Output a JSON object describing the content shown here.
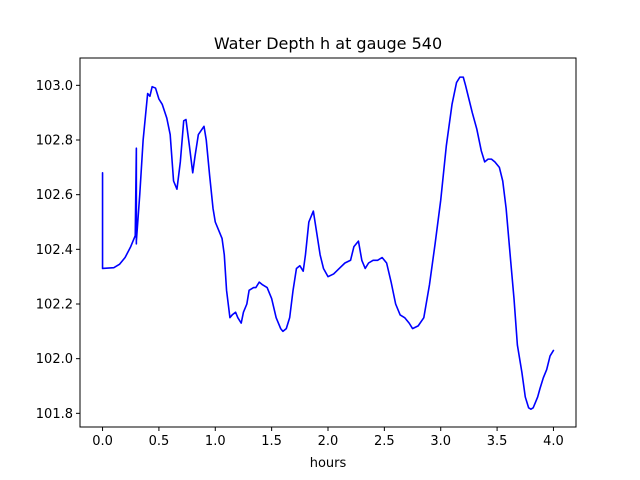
{
  "chart_data": {
    "type": "line",
    "title": "Water Depth h at gauge 540",
    "xlabel": "hours",
    "ylabel": "",
    "xlim": [
      -0.2,
      4.2
    ],
    "ylim": [
      101.75,
      103.1
    ],
    "x_ticks": [
      0.0,
      0.5,
      1.0,
      1.5,
      2.0,
      2.5,
      3.0,
      3.5,
      4.0
    ],
    "x_tick_labels": [
      "0.0",
      "0.5",
      "1.0",
      "1.5",
      "2.0",
      "2.5",
      "3.0",
      "3.5",
      "4.0"
    ],
    "y_ticks": [
      101.8,
      102.0,
      102.2,
      102.4,
      102.6,
      102.8,
      103.0
    ],
    "y_tick_labels": [
      "101.8",
      "102.0",
      "102.2",
      "102.4",
      "102.6",
      "102.8",
      "103.0"
    ],
    "grid": false,
    "legend": null,
    "series": [
      {
        "color": "#0000ff",
        "x": [
          0.0,
          0.0,
          0.0,
          0.1,
          0.15,
          0.2,
          0.25,
          0.29,
          0.3,
          0.3,
          0.3,
          0.33,
          0.36,
          0.4,
          0.42,
          0.44,
          0.47,
          0.5,
          0.53,
          0.57,
          0.6,
          0.63,
          0.66,
          0.69,
          0.72,
          0.74,
          0.77,
          0.8,
          0.82,
          0.85,
          0.9,
          0.92,
          0.95,
          0.98,
          1.0,
          1.03,
          1.06,
          1.08,
          1.1,
          1.13,
          1.15,
          1.18,
          1.2,
          1.23,
          1.25,
          1.28,
          1.3,
          1.34,
          1.36,
          1.39,
          1.42,
          1.46,
          1.5,
          1.54,
          1.58,
          1.6,
          1.63,
          1.66,
          1.69,
          1.72,
          1.75,
          1.78,
          1.8,
          1.83,
          1.87,
          1.9,
          1.93,
          1.96,
          2.0,
          2.05,
          2.1,
          2.15,
          2.2,
          2.23,
          2.27,
          2.3,
          2.33,
          2.36,
          2.4,
          2.44,
          2.48,
          2.52,
          2.56,
          2.6,
          2.64,
          2.68,
          2.72,
          2.75,
          2.8,
          2.85,
          2.9,
          2.95,
          3.0,
          3.05,
          3.1,
          3.14,
          3.17,
          3.2,
          3.22,
          3.25,
          3.28,
          3.32,
          3.36,
          3.39,
          3.42,
          3.45,
          3.48,
          3.52,
          3.55,
          3.58,
          3.62,
          3.65,
          3.68,
          3.72,
          3.75,
          3.78,
          3.8,
          3.82,
          3.84,
          3.86,
          3.88,
          3.91,
          3.94,
          3.97,
          4.0
        ],
        "y": [
          102.68,
          102.33,
          102.33,
          102.333,
          102.345,
          102.37,
          102.41,
          102.45,
          102.77,
          102.42,
          102.43,
          102.6,
          102.8,
          102.97,
          102.96,
          102.995,
          102.99,
          102.95,
          102.93,
          102.88,
          102.82,
          102.65,
          102.62,
          102.72,
          102.87,
          102.875,
          102.78,
          102.68,
          102.74,
          102.82,
          102.85,
          102.8,
          102.67,
          102.55,
          102.5,
          102.47,
          102.44,
          102.38,
          102.25,
          102.15,
          102.16,
          102.17,
          102.15,
          102.13,
          102.17,
          102.2,
          102.25,
          102.26,
          102.26,
          102.28,
          102.27,
          102.26,
          102.22,
          102.15,
          102.11,
          102.1,
          102.11,
          102.15,
          102.25,
          102.33,
          102.34,
          102.32,
          102.38,
          102.5,
          102.54,
          102.46,
          102.38,
          102.33,
          102.3,
          102.31,
          102.33,
          102.35,
          102.36,
          102.41,
          102.43,
          102.36,
          102.33,
          102.35,
          102.36,
          102.36,
          102.37,
          102.35,
          102.28,
          102.2,
          102.16,
          102.15,
          102.13,
          102.11,
          102.12,
          102.15,
          102.27,
          102.42,
          102.58,
          102.78,
          102.93,
          103.01,
          103.03,
          103.03,
          103.0,
          102.95,
          102.9,
          102.84,
          102.76,
          102.72,
          102.73,
          102.73,
          102.72,
          102.7,
          102.65,
          102.55,
          102.36,
          102.22,
          102.05,
          101.95,
          101.86,
          101.82,
          101.815,
          101.82,
          101.84,
          101.86,
          101.89,
          101.93,
          101.96,
          102.01,
          102.03
        ]
      }
    ]
  }
}
